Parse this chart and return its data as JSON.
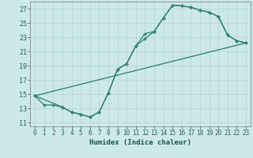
{
  "xlabel": "Humidex (Indice chaleur)",
  "xlim": [
    -0.5,
    23.5
  ],
  "ylim": [
    10.5,
    28.0
  ],
  "xticks": [
    0,
    1,
    2,
    3,
    4,
    5,
    6,
    7,
    8,
    9,
    10,
    11,
    12,
    13,
    14,
    15,
    16,
    17,
    18,
    19,
    20,
    21,
    22,
    23
  ],
  "yticks": [
    11,
    13,
    15,
    17,
    19,
    21,
    23,
    25,
    27
  ],
  "bg_color": "#cce8e8",
  "line_color": "#2d7d6e",
  "grid_color": "#b8d8d8",
  "line1_x": [
    0,
    1,
    2,
    3,
    4,
    5,
    6,
    7,
    8,
    9,
    10,
    11,
    12,
    13,
    14,
    15,
    16,
    17,
    18,
    19,
    20,
    21,
    22,
    23
  ],
  "line1_y": [
    14.8,
    13.5,
    13.5,
    13.2,
    12.5,
    12.2,
    11.8,
    12.5,
    15.2,
    18.5,
    19.3,
    21.8,
    23.5,
    23.8,
    25.7,
    27.5,
    27.4,
    27.2,
    26.8,
    26.5,
    25.9,
    23.3,
    22.5,
    22.2
  ],
  "line2_x": [
    0,
    3,
    4,
    5,
    6,
    7,
    8,
    9,
    10,
    11,
    12,
    13,
    14,
    15,
    16,
    17,
    18,
    19,
    20,
    21,
    22,
    23
  ],
  "line2_y": [
    14.8,
    13.2,
    12.5,
    12.2,
    11.8,
    12.5,
    15.2,
    18.5,
    19.3,
    21.8,
    22.8,
    23.8,
    25.7,
    27.5,
    27.4,
    27.2,
    26.8,
    26.5,
    25.9,
    23.3,
    22.5,
    22.2
  ],
  "line3_x": [
    0,
    23
  ],
  "line3_y": [
    14.8,
    22.2
  ],
  "tick_fontsize": 5.5,
  "xlabel_fontsize": 6.5,
  "tick_color": "#2d6060",
  "xlabel_color": "#1a5555"
}
